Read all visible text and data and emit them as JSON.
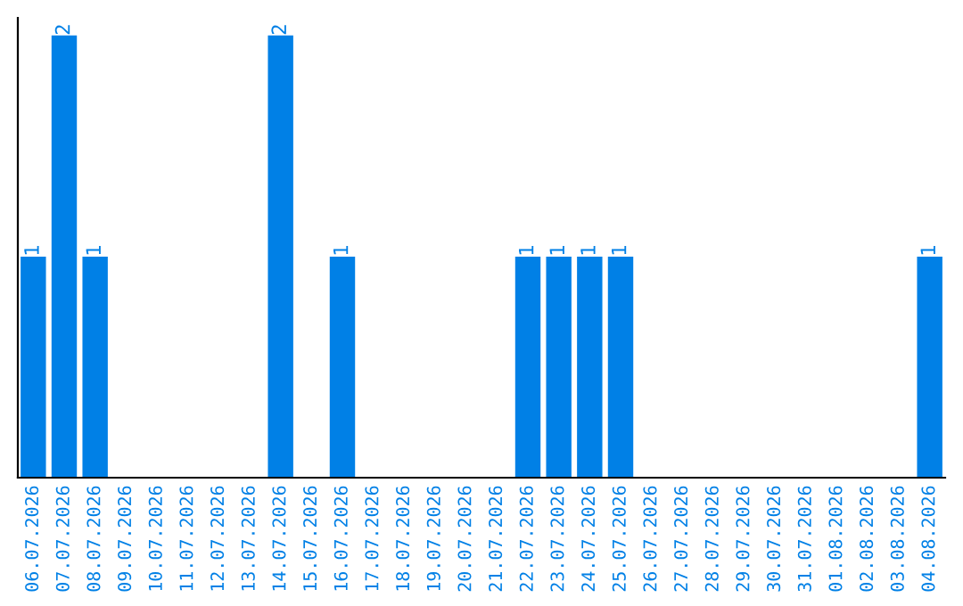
{
  "chart_data": {
    "type": "bar",
    "categories": [
      "06.07.2026",
      "07.07.2026",
      "08.07.2026",
      "09.07.2026",
      "10.07.2026",
      "11.07.2026",
      "12.07.2026",
      "13.07.2026",
      "14.07.2026",
      "15.07.2026",
      "16.07.2026",
      "17.07.2026",
      "18.07.2026",
      "19.07.2026",
      "20.07.2026",
      "21.07.2026",
      "22.07.2026",
      "23.07.2026",
      "24.07.2026",
      "25.07.2026",
      "26.07.2026",
      "27.07.2026",
      "28.07.2026",
      "29.07.2026",
      "30.07.2026",
      "31.07.2026",
      "01.08.2026",
      "02.08.2026",
      "03.08.2026",
      "04.08.2026"
    ],
    "values": [
      1,
      2,
      1,
      0,
      0,
      0,
      0,
      0,
      2,
      0,
      1,
      0,
      0,
      0,
      0,
      0,
      1,
      1,
      1,
      1,
      0,
      0,
      0,
      0,
      0,
      0,
      0,
      0,
      0,
      1
    ],
    "value_labels": [
      "1",
      "2",
      "1",
      null,
      null,
      null,
      null,
      null,
      "2",
      null,
      "1",
      null,
      null,
      null,
      null,
      null,
      "1",
      "1",
      "1",
      "1",
      null,
      null,
      null,
      null,
      null,
      null,
      null,
      null,
      null,
      "1"
    ],
    "color": "#0080e6",
    "tick_labels": "x",
    "grid": false,
    "legend": false
  }
}
